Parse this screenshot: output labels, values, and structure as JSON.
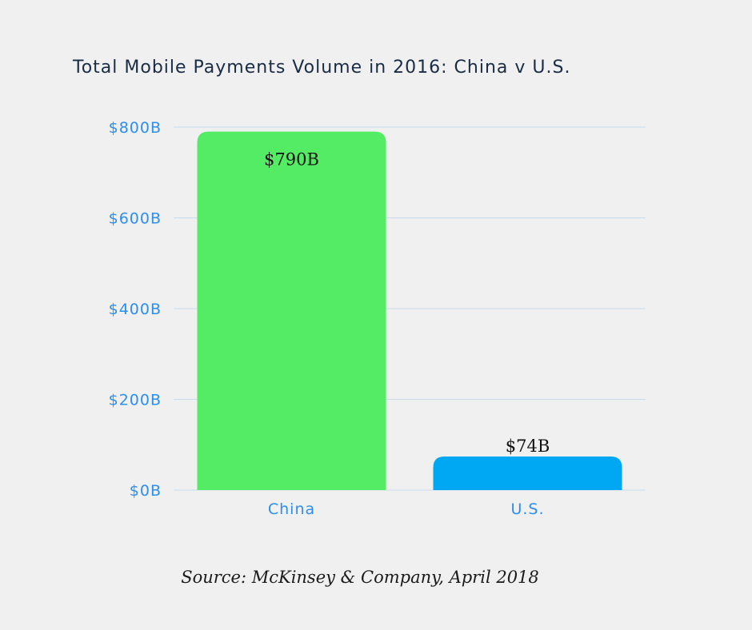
{
  "chart_data": {
    "type": "bar",
    "title": "Total Mobile Payments Volume in 2016: China v U.S.",
    "xlabel": "",
    "ylabel": "",
    "categories": [
      "China",
      "U.S."
    ],
    "values": [
      790,
      74
    ],
    "data_labels": [
      "$790B",
      "$74B"
    ],
    "bar_colors": [
      "#55ec65",
      "#00a8f4"
    ],
    "ylim": [
      0,
      800
    ],
    "yticks": [
      0,
      200,
      400,
      600,
      800
    ],
    "ytick_labels": [
      "$0B",
      "$200B",
      "$400B",
      "$600B",
      "$800B"
    ],
    "grid": true,
    "legend": false
  },
  "source": "Source: McKinsey & Company, April 2018",
  "colors": {
    "background": "#f0f0f0",
    "title": "#1a2c45",
    "axis_text": "#2d8ef2",
    "gridline": "#c9dbeb"
  }
}
